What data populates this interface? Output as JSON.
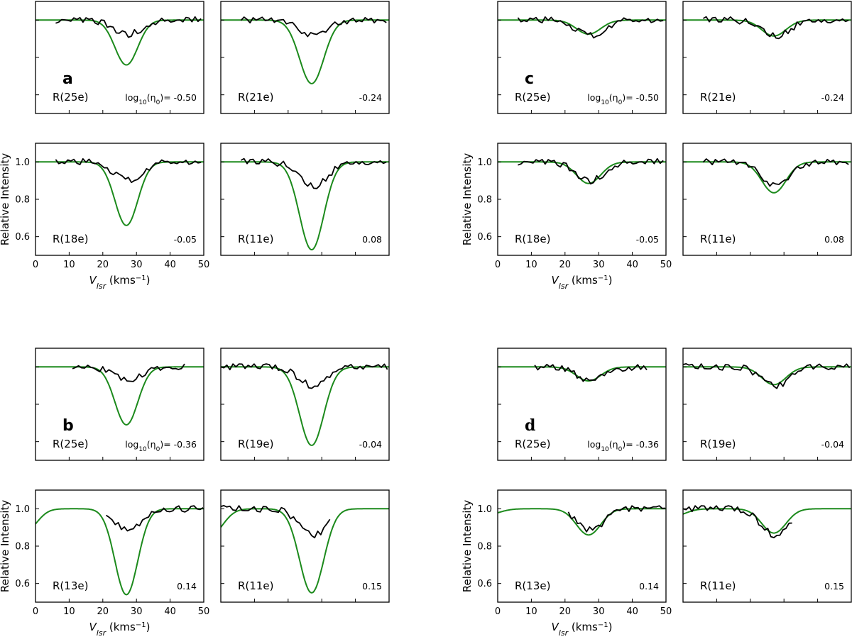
{
  "axes": {
    "x_label_main": "V",
    "x_label_sub": "lsr",
    "x_label_unit_open": " (kms",
    "x_label_unit_sup": "−1",
    "x_label_unit_close": ")",
    "y_label": "Relative Intensity",
    "x_ticks": [
      "0",
      "10",
      "20",
      "30",
      "40",
      "50"
    ],
    "y_ticks": [
      "0.6",
      "0.8",
      "1.0"
    ],
    "eta_prefix": "log",
    "eta_sub": "10",
    "eta_mid": "(η",
    "eta_sub0": "0",
    "eta_suffix": ")= "
  },
  "chart_data": [
    {
      "group": "a",
      "group_font": "sans",
      "type": "line",
      "xlim": [
        0,
        50
      ],
      "ylim": [
        0.5,
        1.1
      ],
      "panels": [
        {
          "label": "R(25e)",
          "eta": "-0.50",
          "x_range_obs": [
            6,
            50
          ],
          "obs_depth": 0.075,
          "model": {
            "depth": 0.24,
            "center": 27,
            "sigma": 3.4
          }
        },
        {
          "label": "R(21e)",
          "eta": "-0.24",
          "x_range_obs": [
            6,
            50
          ],
          "obs_depth": 0.085,
          "model": {
            "depth": 0.34,
            "center": 27,
            "sigma": 3.6
          }
        },
        {
          "label": "R(18e)",
          "eta": "-0.05",
          "x_range_obs": [
            6,
            50
          ],
          "obs_depth": 0.1,
          "model": {
            "depth": 0.34,
            "center": 27,
            "sigma": 3.4
          }
        },
        {
          "label": "R(11e)",
          "eta": "0.08",
          "x_range_obs": [
            6,
            50
          ],
          "obs_depth": 0.13,
          "model": {
            "depth": 0.47,
            "center": 27,
            "sigma": 3.6
          }
        }
      ]
    },
    {
      "group": "c",
      "group_font": "sans",
      "type": "line",
      "xlim": [
        0,
        50
      ],
      "ylim": [
        0.5,
        1.1
      ],
      "panels": [
        {
          "label": "R(25e)",
          "eta": "-0.50",
          "x_range_obs": [
            6,
            50
          ],
          "obs_depth": 0.085,
          "model": {
            "depth": 0.075,
            "center": 27,
            "sigma": 3.6
          }
        },
        {
          "label": "R(21e)",
          "eta": "-0.24",
          "x_range_obs": [
            6,
            50
          ],
          "obs_depth": 0.085,
          "model": {
            "depth": 0.085,
            "center": 27,
            "sigma": 3.6
          }
        },
        {
          "label": "R(18e)",
          "eta": "-0.05",
          "x_range_obs": [
            6,
            50
          ],
          "obs_depth": 0.1,
          "model": {
            "depth": 0.115,
            "center": 27,
            "sigma": 3.6
          }
        },
        {
          "label": "R(11e)",
          "eta": "0.08",
          "x_range_obs": [
            6,
            50
          ],
          "obs_depth": 0.13,
          "model": {
            "depth": 0.165,
            "center": 27,
            "sigma": 3.6
          }
        }
      ]
    },
    {
      "group": "b",
      "group_font": "sans",
      "type": "line",
      "xlim": [
        0,
        50
      ],
      "ylim": [
        0.5,
        1.1
      ],
      "panels": [
        {
          "label": "R(25e)",
          "eta": "-0.36",
          "x_range_obs": [
            11,
            45
          ],
          "obs_depth": 0.07,
          "model": {
            "depth": 0.31,
            "center": 27,
            "sigma": 3.4
          }
        },
        {
          "label": "R(19e)",
          "eta": "-0.04",
          "x_range_obs": [
            0,
            50
          ],
          "obs_depth": 0.1,
          "model": {
            "depth": 0.42,
            "center": 27,
            "sigma": 3.6
          }
        },
        {
          "label": "R(13e)",
          "eta": "0.14",
          "x_range_obs": [
            21,
            50
          ],
          "obs_depth": 0.11,
          "model": {
            "depth": 0.46,
            "center": 27,
            "sigma": 3.4
          },
          "model_side": {
            "center": -3,
            "depth": 0.12
          }
        },
        {
          "label": "R(11e)",
          "eta": "0.15",
          "x_range_obs": [
            0,
            33
          ],
          "obs_depth": 0.14,
          "model": {
            "depth": 0.45,
            "center": 27,
            "sigma": 3.6
          },
          "model_side": {
            "center": -3,
            "depth": 0.14
          }
        }
      ]
    },
    {
      "group": "d",
      "group_font": "serif",
      "type": "line",
      "xlim": [
        0,
        50
      ],
      "ylim": [
        0.5,
        1.1
      ],
      "panels": [
        {
          "label": "R(25e)",
          "eta": "-0.36",
          "x_range_obs": [
            11,
            45
          ],
          "obs_depth": 0.07,
          "model": {
            "depth": 0.075,
            "center": 27,
            "sigma": 3.6
          }
        },
        {
          "label": "R(19e)",
          "eta": "-0.04",
          "x_range_obs": [
            0,
            50
          ],
          "obs_depth": 0.1,
          "model": {
            "depth": 0.095,
            "center": 27,
            "sigma": 3.6
          }
        },
        {
          "label": "R(13e)",
          "eta": "0.14",
          "x_range_obs": [
            21,
            50
          ],
          "obs_depth": 0.11,
          "model": {
            "depth": 0.14,
            "center": 27,
            "sigma": 3.6
          },
          "model_side": {
            "center": -3,
            "depth": 0.03
          }
        },
        {
          "label": "R(11e)",
          "eta": "0.15",
          "x_range_obs": [
            0,
            33
          ],
          "obs_depth": 0.14,
          "model": {
            "depth": 0.13,
            "center": 27,
            "sigma": 3.6
          },
          "model_side": {
            "center": -3,
            "depth": 0.04
          }
        }
      ]
    }
  ],
  "colors": {
    "model": "#1c8a1c",
    "observed": "#000000"
  }
}
